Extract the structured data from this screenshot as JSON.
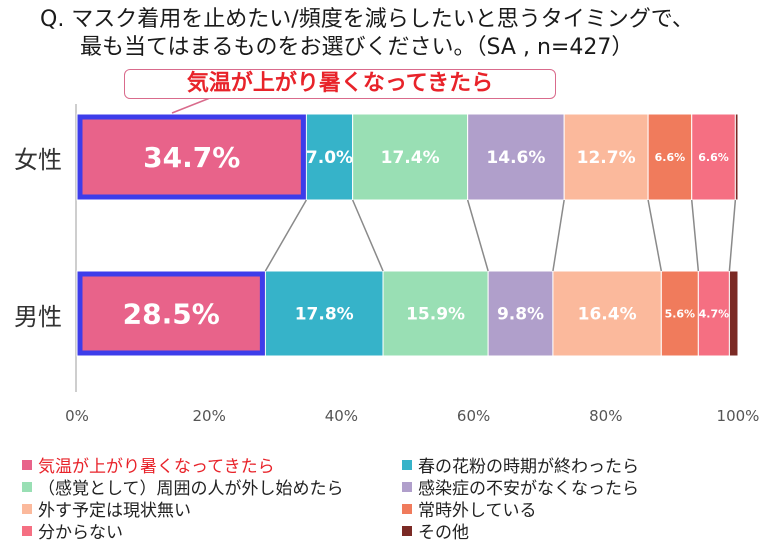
{
  "title": {
    "line1": "Q. マスク着用を止めたい/頻度を減らしたいと思うタイミングで、",
    "line2": "最も当てはまるものをお選びください。（SA , n=427）"
  },
  "callout": "気温が上がり暑くなってきたら",
  "colors": {
    "highlight_border": "#3d3dea",
    "connector": "#8a8a8a",
    "callout_text": "#e8232a"
  },
  "chart_data": {
    "type": "bar",
    "orientation": "horizontal",
    "stacked": true,
    "title": "Q. マスク着用を止めたい/頻度を減らしたいと思うタイミングで、最も当てはまるものをお選びください。（SA , n=427）",
    "categories": [
      "女性",
      "男性"
    ],
    "xlim": [
      0,
      100
    ],
    "xticks": [
      "0%",
      "20%",
      "40%",
      "60%",
      "80%",
      "100%"
    ],
    "series": [
      {
        "name": "気温が上がり暑くなってきたら",
        "color": "#e8638a",
        "values": [
          34.7,
          28.5
        ],
        "labels": [
          "34.7%",
          "28.5%"
        ]
      },
      {
        "name": "春の花粉の時期が終わったら",
        "color": "#36b3c9",
        "values": [
          7.0,
          17.8
        ],
        "labels": [
          "7.0%",
          "17.8%"
        ]
      },
      {
        "name": "（感覚として）周囲の人が外し始めたら",
        "color": "#99dfb4",
        "values": [
          17.4,
          15.9
        ],
        "labels": [
          "17.4%",
          "15.9%"
        ]
      },
      {
        "name": "感染症の不安がなくなったら",
        "color": "#b09fcb",
        "values": [
          14.6,
          9.8
        ],
        "labels": [
          "14.6%",
          "9.8%"
        ]
      },
      {
        "name": "外す予定は現状無い",
        "color": "#fbb99c",
        "values": [
          12.7,
          16.4
        ],
        "labels": [
          "12.7%",
          "16.4%"
        ]
      },
      {
        "name": "常時外している",
        "color": "#f07b5c",
        "values": [
          6.6,
          5.6
        ],
        "labels": [
          "6.6%",
          "5.6%"
        ]
      },
      {
        "name": "分からない",
        "color": "#f56f82",
        "values": [
          6.6,
          4.7
        ],
        "labels": [
          "6.6%",
          "4.7%"
        ]
      },
      {
        "name": "その他",
        "color": "#7b2a25",
        "values": [
          0.4,
          1.3
        ],
        "labels": [
          "",
          ""
        ]
      }
    ],
    "legend_position": "bottom"
  }
}
